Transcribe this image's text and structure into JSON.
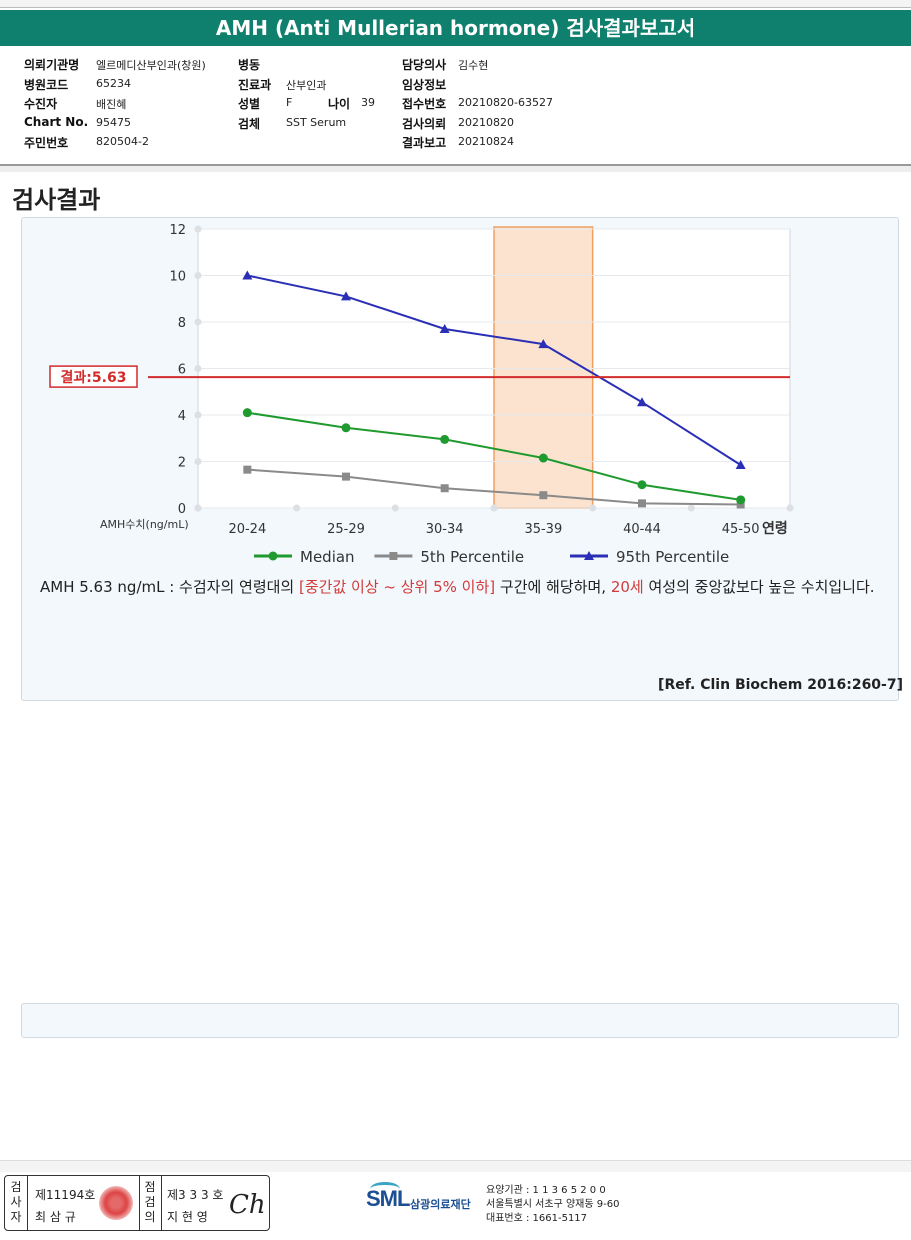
{
  "title": "AMH (Anti Mullerian hormone) 검사결과보고서",
  "info": {
    "col1": [
      {
        "label": "의뢰기관명",
        "value": "엘르메디산부인과(창원)"
      },
      {
        "label": "병원코드",
        "value": "65234"
      },
      {
        "label": "수진자",
        "value": "배진혜"
      },
      {
        "label": "Chart No.",
        "value": "95475"
      },
      {
        "label": "주민번호",
        "value": "820504-2"
      }
    ],
    "col2": [
      {
        "label": "병동",
        "value": ""
      },
      {
        "label": "진료과",
        "value": "산부인과"
      },
      {
        "label": "성별",
        "value": "F"
      },
      {
        "label": "검체",
        "value": "SST Serum"
      }
    ],
    "age": {
      "label": "나이",
      "value": "39"
    },
    "col3": [
      {
        "label": "담당의사",
        "value": "김수현"
      },
      {
        "label": "임상정보",
        "value": ""
      },
      {
        "label": "접수번호",
        "value": "20210820-63527"
      },
      {
        "label": "검사의뢰",
        "value": "20210820"
      },
      {
        "label": "결과보고",
        "value": "20210824"
      }
    ]
  },
  "section_title": "검사결과",
  "chart_data": {
    "type": "line",
    "categories": [
      "20-24",
      "25-29",
      "30-34",
      "35-39",
      "40-44",
      "45-50"
    ],
    "ylabel": "AMH수치(ng/mL)",
    "xlabel": "연령",
    "ylim": [
      0,
      12
    ],
    "yticks": [
      0,
      2,
      4,
      6,
      8,
      10,
      12
    ],
    "grid": true,
    "legend_position": "bottom",
    "highlight_category": "35-39",
    "result_line": {
      "value": 5.63,
      "label": "결과:5.63",
      "color": "#d22b2b"
    },
    "series": [
      {
        "name": "Median",
        "color": "#1f9a2e",
        "marker": "circle",
        "values": [
          4.1,
          3.45,
          2.95,
          2.15,
          1.0,
          0.35
        ]
      },
      {
        "name": "5th Percentile",
        "color": "#8a8a8a",
        "marker": "square",
        "values": [
          1.65,
          1.35,
          0.85,
          0.55,
          0.2,
          0.15
        ]
      },
      {
        "name": "95th Percentile",
        "color": "#2b2fb5",
        "marker": "triangle",
        "values": [
          10.0,
          9.1,
          7.7,
          7.05,
          4.55,
          1.85
        ]
      }
    ]
  },
  "description": {
    "part1": "AMH  5.63 ng/mL : 수검자의 연령대의 ",
    "range_text": "[중간값 이상 ~ 상위 5% 이하]",
    "part2": " 구간에 해당하며, ",
    "age_text": "20세",
    "part3": " 여성의 중앙값보다 높은 수치입니다."
  },
  "reference": "[Ref. Clin Biochem 2016:260-7]",
  "footer": {
    "inspector": {
      "vertical_label": "검사자",
      "license": "제11194호",
      "name": "최 삼 규"
    },
    "reviewer": {
      "vertical_label": "점검의",
      "license": "제3 3 3 호",
      "name": "지 현 영"
    },
    "signature": "Ch",
    "logo": "SML",
    "org_name": "삼광의료재단",
    "address_lines": [
      "요양기관 : 1 1 3 6 5 2 0 0",
      "서울특별시 서초구 양재동 9-60",
      "대표번호 : 1661-5117"
    ]
  }
}
